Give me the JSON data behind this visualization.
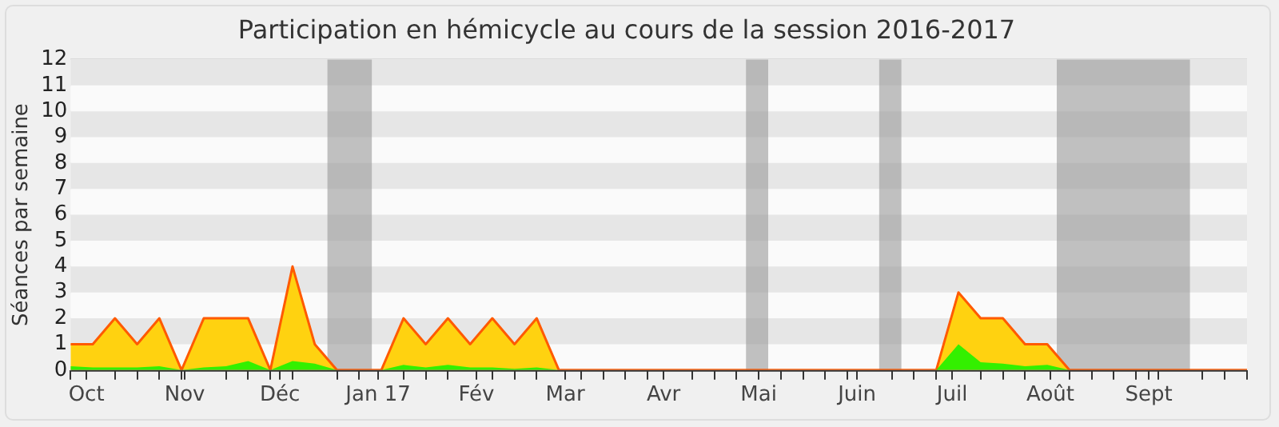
{
  "chart_data": {
    "type": "area",
    "title": "Participation en hémicycle au cours de la session 2016-2017",
    "ylabel": "Séances par semaine",
    "x": [
      "2016-09-26",
      "2016-10-03",
      "2016-10-10",
      "2016-10-17",
      "2016-10-24",
      "2016-10-31",
      "2016-11-07",
      "2016-11-14",
      "2016-11-21",
      "2016-11-28",
      "2016-12-05",
      "2016-12-12",
      "2016-12-19",
      "2016-12-26",
      "2017-01-02",
      "2017-01-09",
      "2017-01-16",
      "2017-01-23",
      "2017-01-30",
      "2017-02-06",
      "2017-02-13",
      "2017-02-20",
      "2017-02-27",
      "2017-03-06",
      "2017-03-13",
      "2017-03-20",
      "2017-03-27",
      "2017-04-03",
      "2017-04-10",
      "2017-04-17",
      "2017-04-24",
      "2017-05-01",
      "2017-05-08",
      "2017-05-15",
      "2017-05-22",
      "2017-05-29",
      "2017-06-05",
      "2017-06-12",
      "2017-06-19",
      "2017-06-26",
      "2017-07-03",
      "2017-07-10",
      "2017-07-17",
      "2017-07-24",
      "2017-07-31",
      "2017-08-07",
      "2017-08-14",
      "2017-08-21",
      "2017-08-28",
      "2017-09-04",
      "2017-09-11",
      "2017-09-18",
      "2017-09-25",
      "2017-10-02"
    ],
    "series": [
      {
        "color": "#ffd210",
        "values": [
          1,
          1,
          2,
          1,
          2,
          0,
          2,
          2,
          2,
          0,
          4,
          1,
          0,
          0,
          0,
          2,
          1,
          2,
          1,
          2,
          1,
          2,
          0,
          0,
          0,
          0,
          0,
          0,
          0,
          0,
          0,
          0,
          0,
          0,
          0,
          0,
          0,
          0,
          0,
          0,
          3,
          2,
          2,
          1,
          1,
          0,
          0,
          0,
          0,
          0,
          0,
          0,
          0,
          0
        ]
      },
      {
        "color": "#33f000",
        "values": [
          0.15,
          0.1,
          0.1,
          0.1,
          0.15,
          0,
          0.1,
          0.15,
          0.35,
          0,
          0.35,
          0.25,
          0,
          0,
          0,
          0.2,
          0.1,
          0.2,
          0.1,
          0.1,
          0.05,
          0.1,
          0,
          0,
          0,
          0,
          0,
          0,
          0,
          0,
          0,
          0,
          0,
          0,
          0,
          0,
          0,
          0,
          0,
          0,
          1,
          0.3,
          0.25,
          0.15,
          0.2,
          0,
          0,
          0,
          0,
          0,
          0,
          0,
          0,
          0
        ]
      }
    ],
    "xlim": [
      "2016-09-26",
      "2017-10-02"
    ],
    "xticks": [
      {
        "value": "2016-09-26",
        "label": null
      },
      {
        "value": "2016-10-01",
        "label": "Oct"
      },
      {
        "value": "2016-10-10",
        "label": null
      },
      {
        "value": "2016-10-17",
        "label": null
      },
      {
        "value": "2016-10-24",
        "label": null
      },
      {
        "value": "2016-10-31",
        "label": null
      },
      {
        "value": "2016-11-01",
        "label": "Nov"
      },
      {
        "value": "2016-11-14",
        "label": null
      },
      {
        "value": "2016-11-21",
        "label": null
      },
      {
        "value": "2016-11-28",
        "label": null
      },
      {
        "value": "2016-12-05",
        "label": null
      },
      {
        "value": "2016-12-01",
        "label": "Déc"
      },
      {
        "value": "2016-12-19",
        "label": null
      },
      {
        "value": "2016-12-26",
        "label": null
      },
      {
        "value": "2017-01-01",
        "label": "Jan 17"
      },
      {
        "value": "2017-01-09",
        "label": null
      },
      {
        "value": "2017-01-16",
        "label": null
      },
      {
        "value": "2017-01-23",
        "label": null
      },
      {
        "value": "2017-02-01",
        "label": "Fév"
      },
      {
        "value": "2017-02-06",
        "label": null
      },
      {
        "value": "2017-02-13",
        "label": null
      },
      {
        "value": "2017-02-20",
        "label": null
      },
      {
        "value": "2017-03-01",
        "label": "Mar"
      },
      {
        "value": "2017-03-06",
        "label": null
      },
      {
        "value": "2017-03-13",
        "label": null
      },
      {
        "value": "2017-03-20",
        "label": null
      },
      {
        "value": "2017-03-27",
        "label": null
      },
      {
        "value": "2017-04-01",
        "label": "Avr"
      },
      {
        "value": "2017-04-10",
        "label": null
      },
      {
        "value": "2017-04-17",
        "label": null
      },
      {
        "value": "2017-04-24",
        "label": null
      },
      {
        "value": "2017-05-01",
        "label": "Mai"
      },
      {
        "value": "2017-05-08",
        "label": null
      },
      {
        "value": "2017-05-15",
        "label": null
      },
      {
        "value": "2017-05-22",
        "label": null
      },
      {
        "value": "2017-05-29",
        "label": null
      },
      {
        "value": "2017-06-01",
        "label": "Juin"
      },
      {
        "value": "2017-06-12",
        "label": null
      },
      {
        "value": "2017-06-19",
        "label": null
      },
      {
        "value": "2017-06-26",
        "label": null
      },
      {
        "value": "2017-07-01",
        "label": "Juil"
      },
      {
        "value": "2017-07-10",
        "label": null
      },
      {
        "value": "2017-07-17",
        "label": null
      },
      {
        "value": "2017-07-24",
        "label": null
      },
      {
        "value": "2017-08-01",
        "label": "Août"
      },
      {
        "value": "2017-08-07",
        "label": null
      },
      {
        "value": "2017-08-14",
        "label": null
      },
      {
        "value": "2017-08-21",
        "label": null
      },
      {
        "value": "2017-08-28",
        "label": null
      },
      {
        "value": "2017-09-04",
        "label": null
      },
      {
        "value": "2017-09-01",
        "label": "Sept"
      },
      {
        "value": "2017-09-18",
        "label": null
      },
      {
        "value": "2017-09-25",
        "label": null
      },
      {
        "value": "2017-10-02",
        "label": null
      }
    ],
    "ylim": [
      0,
      12
    ],
    "yticks": [
      0,
      1,
      2,
      3,
      4,
      5,
      6,
      7,
      8,
      9,
      10,
      11,
      12
    ],
    "grid": "y",
    "legend": false,
    "marker": "none",
    "bands": [
      {
        "axis": "x",
        "from": "2016-12-16",
        "to": "2016-12-30",
        "color": "#999999"
      },
      {
        "axis": "x",
        "from": "2017-04-27",
        "to": "2017-05-04",
        "color": "#999999"
      },
      {
        "axis": "x",
        "from": "2017-06-08",
        "to": "2017-06-15",
        "color": "#999999"
      },
      {
        "axis": "x",
        "from": "2017-08-03",
        "to": "2017-09-14",
        "color": "#999999"
      }
    ]
  }
}
